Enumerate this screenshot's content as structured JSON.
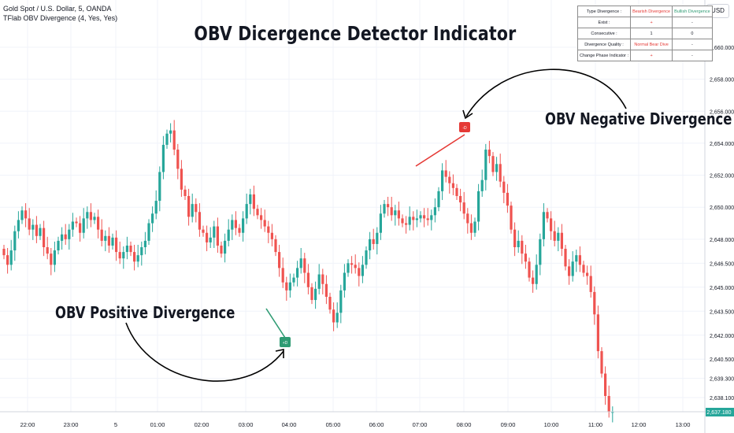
{
  "legend": {
    "line1": "Gold Spot / U.S. Dollar, 5, OANDA",
    "line2": "TFlab OBV Divergence (4, Yes, Yes)"
  },
  "headline": "OBV Dicergence Detector Indicator",
  "annotations": {
    "negative": "OBV Negative Divergence",
    "positive": "OBV Positive Divergence",
    "bear_marker": "-D",
    "bull_marker": "+D"
  },
  "currency_button": "USD",
  "info_table": {
    "rows": [
      {
        "label": "Type Divergence :",
        "bear": "Bearish Divergence",
        "bull": "Bullish Divergence"
      },
      {
        "label": "Exist :",
        "bear": "+",
        "bull": "-"
      },
      {
        "label": "Consecutive :",
        "bear": "1",
        "bull": "0"
      },
      {
        "label": "Divergence Quality :",
        "bear": "Normal Bear Dive",
        "bull": "-"
      },
      {
        "label": "Change Phase Indicator :",
        "bear": "+",
        "bull": "-"
      }
    ]
  },
  "colors": {
    "up": "#26a69a",
    "down": "#ef5350",
    "bear_line": "#e53935",
    "bull_line": "#2e9b73",
    "grid": "#f0f3fa",
    "price_tag": "#26a69a"
  },
  "chart_data": {
    "type": "candlestick",
    "title": "Gold Spot / U.S. Dollar, 5, OANDA",
    "ylim": [
      2636.6,
      2661.8
    ],
    "y_ticks": [
      "2,660.000",
      "2,658.000",
      "2,656.000",
      "2,654.000",
      "2,652.000",
      "2,650.000",
      "2,648.000",
      "2,646.500",
      "2,645.000",
      "2,643.500",
      "2,642.000",
      "2,640.500",
      "2,639.300",
      "2,638.100"
    ],
    "x_ticks": [
      "22:00",
      "23:00",
      "5",
      "01:00",
      "02:00",
      "03:00",
      "04:00",
      "05:00",
      "06:00",
      "07:00",
      "08:00",
      "09:00",
      "10:00",
      "11:00",
      "12:00",
      "13:00"
    ],
    "current_price": "2,637.180",
    "closes": [
      2647.0,
      2646.4,
      2647.3,
      2648.5,
      2649.2,
      2649.8,
      2649.3,
      2648.6,
      2648.9,
      2648.2,
      2648.7,
      2647.5,
      2647.1,
      2646.4,
      2647.3,
      2647.9,
      2648.3,
      2648.0,
      2648.6,
      2649.1,
      2649.0,
      2648.4,
      2649.3,
      2649.7,
      2649.2,
      2649.4,
      2648.6,
      2647.9,
      2648.2,
      2647.6,
      2648.1,
      2647.2,
      2646.8,
      2647.2,
      2647.6,
      2647.2,
      2646.6,
      2647.0,
      2647.5,
      2647.9,
      2649.0,
      2649.6,
      2650.4,
      2652.2,
      2653.9,
      2654.6,
      2654.8,
      2653.6,
      2652.4,
      2651.1,
      2650.7,
      2649.4,
      2650.2,
      2649.7,
      2648.6,
      2648.4,
      2647.8,
      2648.1,
      2648.8,
      2647.6,
      2647.1,
      2647.9,
      2648.6,
      2649.2,
      2648.7,
      2648.4,
      2649.3,
      2650.2,
      2650.8,
      2649.9,
      2649.5,
      2649.2,
      2648.8,
      2648.4,
      2648.0,
      2647.2,
      2646.2,
      2645.3,
      2644.8,
      2645.3,
      2645.6,
      2646.2,
      2646.8,
      2645.9,
      2645.0,
      2644.2,
      2644.9,
      2645.8,
      2645.2,
      2644.4,
      2643.6,
      2642.8,
      2643.4,
      2644.8,
      2645.9,
      2646.5,
      2646.4,
      2646.2,
      2645.7,
      2646.4,
      2647.3,
      2648.0,
      2647.7,
      2648.4,
      2649.6,
      2650.2,
      2650.0,
      2649.5,
      2649.8,
      2649.3,
      2649.0,
      2648.9,
      2649.4,
      2649.2,
      2649.3,
      2649.5,
      2649.3,
      2649.2,
      2649.5,
      2650.0,
      2651.0,
      2652.3,
      2651.9,
      2651.5,
      2651.2,
      2650.7,
      2650.3,
      2649.6,
      2649.0,
      2648.4,
      2649.1,
      2651.0,
      2651.7,
      2653.6,
      2653.2,
      2652.2,
      2652.7,
      2651.6,
      2650.9,
      2650.1,
      2648.6,
      2647.5,
      2647.9,
      2647.1,
      2646.6,
      2645.6,
      2645.2,
      2646.4,
      2648.0,
      2649.7,
      2649.3,
      2648.5,
      2647.9,
      2648.4,
      2647.4,
      2646.3,
      2645.7,
      2646.6,
      2647.0,
      2646.4,
      2645.9,
      2645.7,
      2644.7,
      2643.3,
      2641.0,
      2639.6,
      2638.2,
      2637.2,
      2637.2
    ]
  }
}
